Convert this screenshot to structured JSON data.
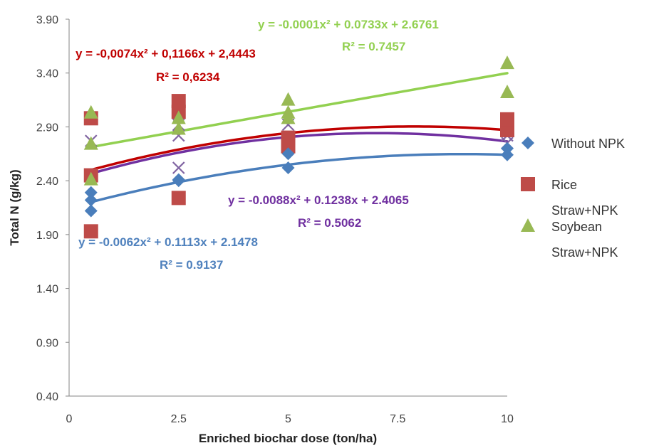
{
  "chart_data": {
    "type": "scatter",
    "title": "",
    "xlabel": "Enriched biochar dose (ton/ha)",
    "ylabel": "Total N (g/kg)",
    "xlim": [
      0,
      10
    ],
    "ylim": [
      0.4,
      3.9
    ],
    "x_ticks": [
      "0",
      "2.5",
      "5",
      "7.5",
      "10"
    ],
    "y_ticks": [
      "0.40",
      "0.90",
      "1.40",
      "1.90",
      "2.40",
      "2.90",
      "3.40",
      "3.90"
    ],
    "grid": false,
    "legend_position": "right",
    "series": [
      {
        "name": "Without NPK",
        "legend_lines": [
          "Without NPK"
        ],
        "color": "#4a7ebb",
        "marker": "diamond",
        "points": [
          [
            0.5,
            2.12
          ],
          [
            0.5,
            2.22
          ],
          [
            0.5,
            2.29
          ],
          [
            2.5,
            2.4
          ],
          [
            2.5,
            2.41
          ],
          [
            5,
            2.52
          ],
          [
            5,
            2.65
          ],
          [
            10,
            2.64
          ],
          [
            10,
            2.7
          ]
        ],
        "trend": {
          "a": -0.0062,
          "b": 0.1113,
          "c": 2.1478
        },
        "equation": "y = -0.0062x² + 0.1113x + 2.1478",
        "r2": "R² = 0.9137"
      },
      {
        "name": "Rice Straw+NPK",
        "legend_lines": [
          "Rice",
          "Straw+NPK"
        ],
        "color": "#be4b48",
        "trend_color": "#c00000",
        "marker": "square",
        "points": [
          [
            0.5,
            1.93
          ],
          [
            0.5,
            2.45
          ],
          [
            0.5,
            2.98
          ],
          [
            2.5,
            2.24
          ],
          [
            2.5,
            3.04
          ],
          [
            2.5,
            3.14
          ],
          [
            5,
            2.72
          ],
          [
            5,
            2.8
          ],
          [
            10,
            2.87
          ],
          [
            10,
            2.97
          ]
        ],
        "trend": {
          "a": -0.0074,
          "b": 0.1166,
          "c": 2.4443
        },
        "equation": "y = -0,0074x² + 0,1166x + 2,4443",
        "r2": "R² = 0,6234"
      },
      {
        "name": "Soybean Straw+NPK",
        "legend_lines": [
          "Soybean",
          "Straw+NPK"
        ],
        "color": "#98b954",
        "trend_color": "#92d050",
        "marker": "triangle",
        "points": [
          [
            0.5,
            2.41
          ],
          [
            0.5,
            2.74
          ],
          [
            0.5,
            3.03
          ],
          [
            2.5,
            2.88
          ],
          [
            2.5,
            2.98
          ],
          [
            5,
            2.98
          ],
          [
            5,
            3.03
          ],
          [
            5,
            3.15
          ],
          [
            10,
            3.22
          ],
          [
            10,
            3.49
          ]
        ],
        "trend": {
          "a": -0.0001,
          "b": 0.0733,
          "c": 2.6761
        },
        "equation": "y = -0.0001x² + 0.0733x + 2.6761",
        "r2": "R² = 0.7457"
      },
      {
        "name": "",
        "legend_lines": [],
        "color": "#8064a2",
        "trend_color": "#7030a0",
        "marker": "x",
        "points": [
          [
            0.5,
            2.42
          ],
          [
            0.5,
            2.77
          ],
          [
            2.5,
            2.52
          ],
          [
            2.5,
            2.82
          ],
          [
            2.5,
            2.92
          ],
          [
            5,
            2.78
          ],
          [
            5,
            2.92
          ],
          [
            10,
            2.75
          ],
          [
            10,
            2.82
          ]
        ],
        "trend": {
          "a": -0.0088,
          "b": 0.1238,
          "c": 2.4065
        },
        "equation": "y = -0.0088x² + 0.1238x + 2.4065",
        "r2": "R² = 0.5062"
      }
    ]
  }
}
